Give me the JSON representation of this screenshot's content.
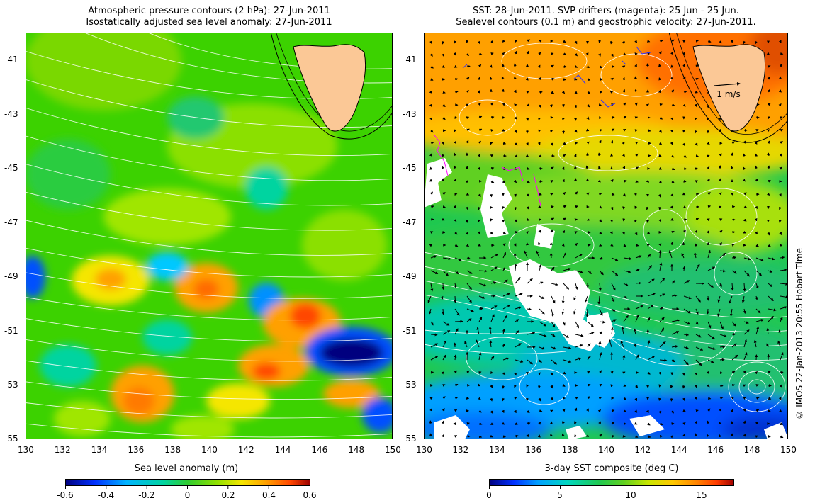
{
  "left_panel": {
    "title_line1": "Atmospheric pressure contours (2 hPa): 27-Jun-2011",
    "title_line2": "Isostatically adjusted sea level anomaly: 27-Jun-2011",
    "colorbar_label": "Sea level anomaly (m)",
    "colorbar_ticks": [
      "-0.6",
      "-0.4",
      "-0.2",
      "0",
      "0.2",
      "0.4",
      "0.6"
    ]
  },
  "right_panel": {
    "title_line1": "SST: 28-Jun-2011. SVP drifters (magenta): 25 Jun - 25 Jun.",
    "title_line2": "Sealevel contours (0.1 m) and geostrophic velocity: 27-Jun-2011.",
    "colorbar_label": "3-day SST composite (deg C)",
    "colorbar_ticks": [
      "0",
      "5",
      "10",
      "15"
    ],
    "scale_arrow_label": "1 m/s"
  },
  "lat_ticks": [
    "-41",
    "-43",
    "-45",
    "-47",
    "-49",
    "-51",
    "-53",
    "-55"
  ],
  "lon_ticks": [
    "130",
    "132",
    "134",
    "136",
    "138",
    "140",
    "142",
    "144",
    "146",
    "148",
    "150"
  ],
  "credit": "© IMOS 22-Jan-2013 20:55 Hobart Time",
  "colors": {
    "land": "#fbc896",
    "sla_scale": [
      "#00007f",
      "#0050ff",
      "#00c8ff",
      "#00d4a0",
      "#3cd200",
      "#a0e600",
      "#f5e600",
      "#ffa000",
      "#ff4600",
      "#9c0000"
    ],
    "sst_scale": [
      "#00007f",
      "#0030ff",
      "#00a0ff",
      "#00d7c0",
      "#20c850",
      "#60d020",
      "#c8e600",
      "#ffc800",
      "#ff8200",
      "#ff3c00",
      "#a00000"
    ]
  }
}
